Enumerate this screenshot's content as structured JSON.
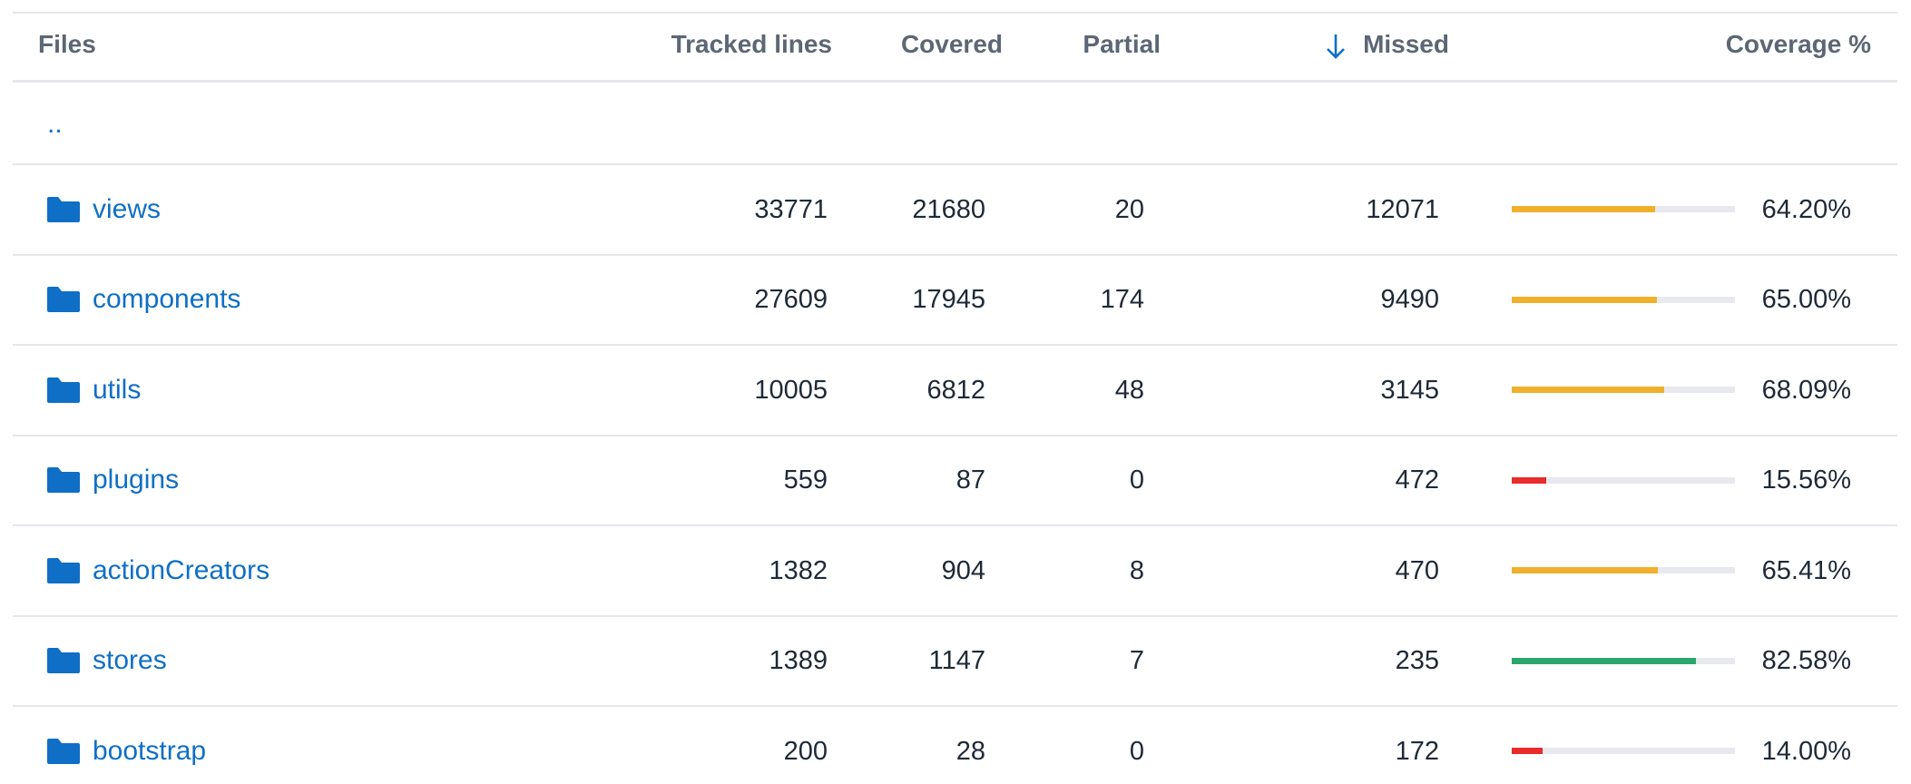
{
  "table": {
    "header": [
      "Files",
      "Tracked lines",
      "Covered",
      "Partial",
      "Missed",
      "Coverage %"
    ],
    "parent": "..",
    "rows": [
      {
        "name": "views",
        "tracked": 33771,
        "covered": 21680,
        "partial": 20,
        "missed": 12071,
        "coverage": {
          "value": 64.2,
          "label": "64.20%"
        },
        "color": "#f0b02c"
      },
      {
        "name": "components",
        "tracked": 27609,
        "covered": 17945,
        "partial": 174,
        "missed": 9490,
        "coverage": {
          "value": 65.0,
          "label": "65.00%"
        },
        "color": "#f0b02c"
      },
      {
        "name": "utils",
        "tracked": 10005,
        "covered": 6812,
        "partial": 48,
        "missed": 3145,
        "coverage": {
          "value": 68.09,
          "label": "68.09%"
        },
        "color": "#f0b02c"
      },
      {
        "name": "plugins",
        "tracked": 559,
        "covered": 87,
        "partial": 0,
        "missed": 472,
        "coverage": {
          "value": 15.56,
          "label": "15.56%"
        },
        "color": "#e82b2b"
      },
      {
        "name": "actionCreators",
        "tracked": 1382,
        "covered": 904,
        "partial": 8,
        "missed": 470,
        "coverage": {
          "value": 65.41,
          "label": "65.41%"
        },
        "color": "#f0b02c"
      },
      {
        "name": "stores",
        "tracked": 1389,
        "covered": 1147,
        "partial": 7,
        "missed": 235,
        "coverage": {
          "value": 82.58,
          "label": "82.58%"
        },
        "color": "#2ba66c"
      },
      {
        "name": "bootstrap",
        "tracked": 200,
        "covered": 28,
        "partial": 0,
        "missed": 172,
        "coverage": {
          "value": 14.0,
          "label": "14.00%"
        },
        "color": "#e82b2b"
      }
    ]
  }
}
